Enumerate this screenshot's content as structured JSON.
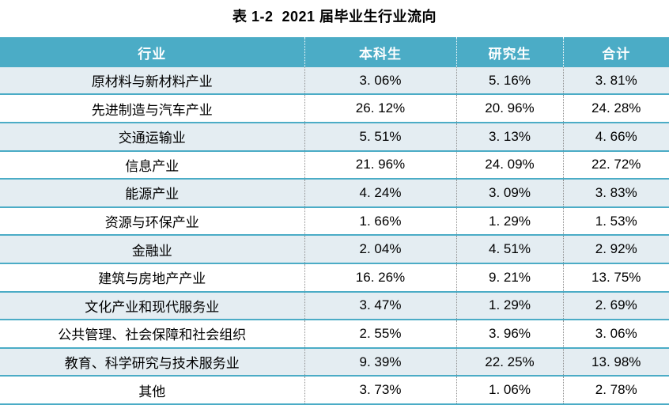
{
  "caption": "表 1-2  2021 届毕业生行业流向",
  "colors": {
    "header_bg": "#4BACC6",
    "header_text": "#FFFFFF",
    "band_row_bg": "#E4EDF2",
    "row_divider": "#4BACC6",
    "column_divider_dotted": "#8F8F8F",
    "body_text": "#000000"
  },
  "table": {
    "headers": [
      "行业",
      "本科生",
      "研究生",
      "合计"
    ],
    "rows": [
      {
        "industry": "原材料与新材料产业",
        "undergraduate": "3. 06%",
        "graduate": "5. 16%",
        "total": "3. 81%"
      },
      {
        "industry": "先进制造与汽车产业",
        "undergraduate": "26. 12%",
        "graduate": "20. 96%",
        "total": "24. 28%"
      },
      {
        "industry": "交通运输业",
        "undergraduate": "5. 51%",
        "graduate": "3. 13%",
        "total": "4. 66%"
      },
      {
        "industry": "信息产业",
        "undergraduate": "21. 96%",
        "graduate": "24. 09%",
        "total": "22. 72%"
      },
      {
        "industry": "能源产业",
        "undergraduate": "4. 24%",
        "graduate": "3. 09%",
        "total": "3. 83%"
      },
      {
        "industry": "资源与环保产业",
        "undergraduate": "1. 66%",
        "graduate": "1. 29%",
        "total": "1. 53%"
      },
      {
        "industry": "金融业",
        "undergraduate": "2. 04%",
        "graduate": "4. 51%",
        "total": "2. 92%"
      },
      {
        "industry": "建筑与房地产产业",
        "undergraduate": "16. 26%",
        "graduate": "9. 21%",
        "total": "13. 75%"
      },
      {
        "industry": "文化产业和现代服务业",
        "undergraduate": "3. 47%",
        "graduate": "1. 29%",
        "total": "2. 69%"
      },
      {
        "industry": "公共管理、社会保障和社会组织",
        "undergraduate": "2. 55%",
        "graduate": "3. 96%",
        "total": "3. 06%"
      },
      {
        "industry": "教育、科学研究与技术服务业",
        "undergraduate": "9. 39%",
        "graduate": "22. 25%",
        "total": "13. 98%"
      },
      {
        "industry": "其他",
        "undergraduate": "3. 73%",
        "graduate": "1. 06%",
        "total": "2. 78%"
      }
    ]
  }
}
